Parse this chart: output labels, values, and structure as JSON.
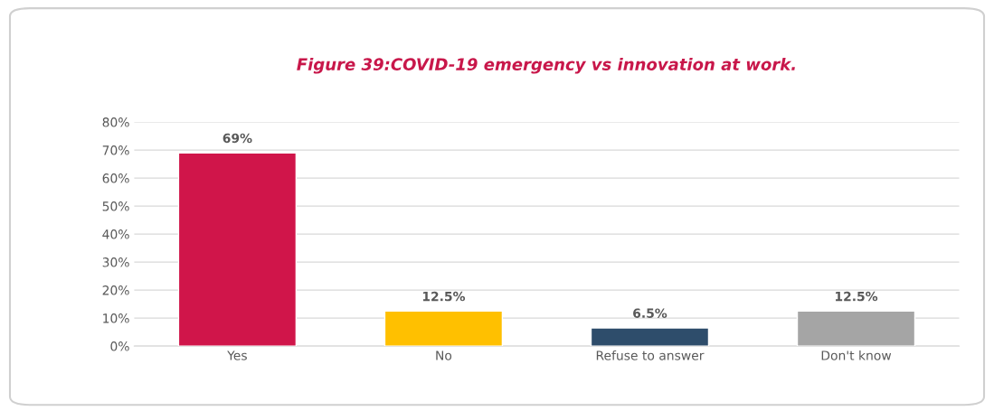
{
  "chart_data": {
    "type": "bar",
    "title": "Figure 39:COVID-19 emergency vs innovation at work.",
    "categories": [
      "Yes",
      "No",
      "Refuse to answer",
      "Don't know"
    ],
    "values": [
      69,
      12.5,
      6.5,
      12.5
    ],
    "value_labels": [
      "69%",
      "12.5%",
      "6.5%",
      "12.5%"
    ],
    "colors": [
      "#d0154a",
      "#ffc000",
      "#2e4d6b",
      "#a5a5a5"
    ],
    "ylim": [
      0,
      80
    ],
    "yticks": [
      {
        "value": 0,
        "label": "0%"
      },
      {
        "value": 10,
        "label": "10%"
      },
      {
        "value": 20,
        "label": "20%"
      },
      {
        "value": 30,
        "label": "30%"
      },
      {
        "value": 40,
        "label": "40%"
      },
      {
        "value": 50,
        "label": "50%"
      },
      {
        "value": 60,
        "label": "60%"
      },
      {
        "value": 70,
        "label": "70%"
      },
      {
        "value": 80,
        "label": "80%"
      }
    ],
    "grid": "y",
    "legend": false
  }
}
